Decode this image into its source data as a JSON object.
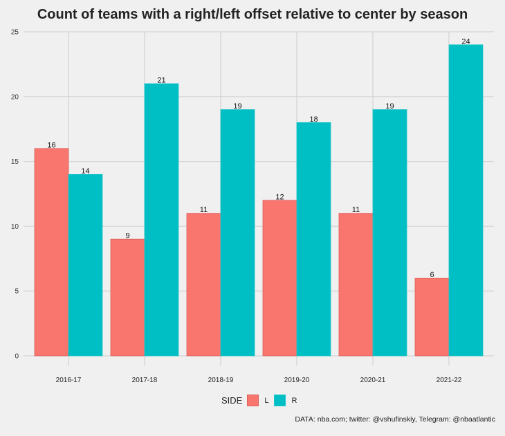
{
  "chart_data": {
    "type": "bar",
    "title": "Count of teams with a right/left offset relative to center by season",
    "xlabel": "",
    "ylabel": "",
    "categories": [
      "2016-17",
      "2017-18",
      "2018-19",
      "2019-20",
      "2020-21",
      "2021-22"
    ],
    "series": [
      {
        "name": "L",
        "color": "#f8766d",
        "values": [
          16,
          9,
          11,
          12,
          11,
          6
        ]
      },
      {
        "name": "R",
        "color": "#00bfc4",
        "values": [
          14,
          21,
          19,
          18,
          19,
          24
        ]
      }
    ],
    "ylim": [
      0,
      25
    ],
    "yticks": [
      0,
      5,
      10,
      15,
      20,
      25
    ],
    "grid": true,
    "legend": {
      "title": "SIDE",
      "position": "bottom"
    },
    "caption": "DATA: nba.com; twitter: @vshufinskiy, Telegram: @nbaatlantic"
  }
}
